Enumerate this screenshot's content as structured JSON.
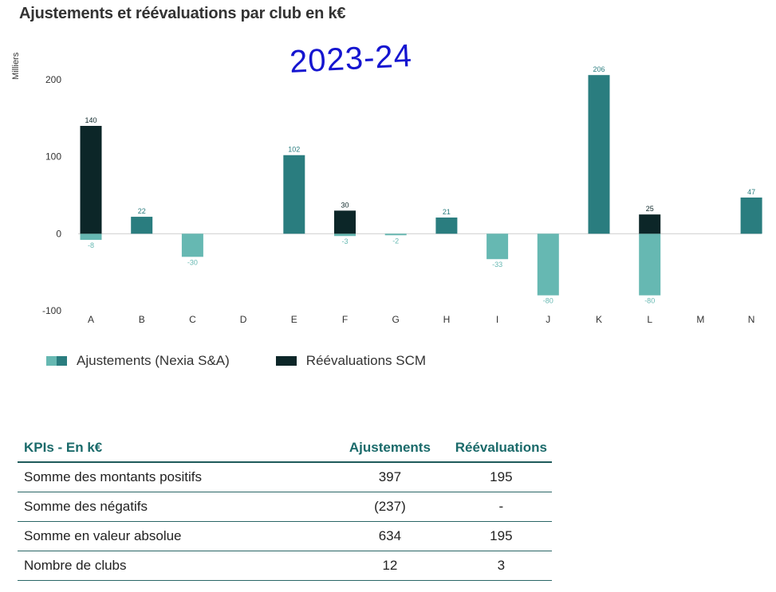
{
  "title": "Ajustements et réévaluations par club en k€",
  "season": "2023-24",
  "chart_data": {
    "type": "bar",
    "ylabel": "Milliers",
    "ylim": [
      -100,
      200
    ],
    "yticks": [
      200,
      100,
      0,
      -100
    ],
    "categories": [
      "A",
      "B",
      "C",
      "D",
      "E",
      "F",
      "G",
      "H",
      "I",
      "J",
      "K",
      "L",
      "M",
      "N"
    ],
    "series": [
      {
        "name": "Ajustements (Nexia S&A)",
        "color_light": "#66b8b2",
        "color_dark": "#2a7d7f",
        "values": [
          -8,
          22,
          -30,
          null,
          102,
          -3,
          -2,
          21,
          -33,
          -80,
          206,
          -80,
          null,
          47
        ]
      },
      {
        "name": "Réévaluations SCM",
        "color": "#0c2628",
        "values": [
          140,
          null,
          null,
          null,
          null,
          30,
          null,
          null,
          null,
          null,
          null,
          25,
          null,
          null
        ]
      }
    ]
  },
  "legend": {
    "items": [
      {
        "label": "Ajustements (Nexia S&A)"
      },
      {
        "label": "Réévaluations SCM"
      }
    ]
  },
  "kpi_table": {
    "headers": [
      "KPIs - En k€",
      "Ajustements",
      "Réévaluations"
    ],
    "rows": [
      [
        "Somme des montants positifs",
        "397",
        "195"
      ],
      [
        "Somme des négatifs",
        "(237)",
        "-"
      ],
      [
        "Somme en valeur absolue",
        "634",
        "195"
      ],
      [
        "Nombre de clubs",
        "12",
        "3"
      ]
    ]
  }
}
